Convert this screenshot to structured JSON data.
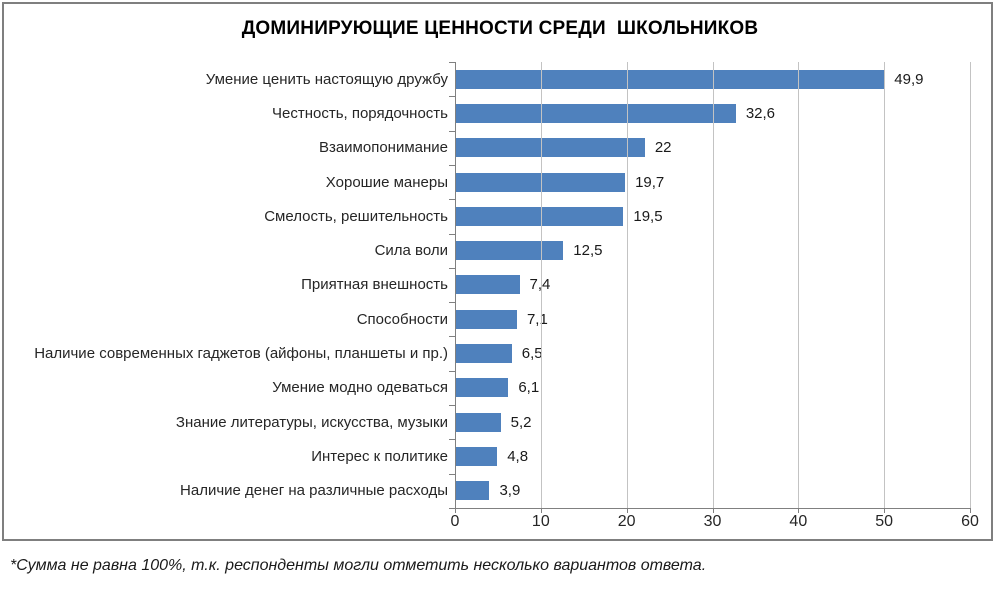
{
  "chart": {
    "title": "ДОМИНИРУЮЩИЕ ЦЕННОСТИ СРЕДИ  ШКОЛЬНИКОВ",
    "footnote": "*Сумма не равна 100%, т.к. респонденты могли отметить несколько вариантов ответа."
  },
  "chart_data": {
    "type": "bar",
    "orientation": "horizontal",
    "title": "ДОМИНИРУЮЩИЕ ЦЕННОСТИ СРЕДИ  ШКОЛЬНИКОВ",
    "categories": [
      "Умение ценить настоящую дружбу",
      "Честность, порядочность",
      "Взаимопонимание",
      "Хорошие манеры",
      "Смелость, решительность",
      "Сила воли",
      "Приятная внешность",
      "Способности",
      "Наличие современных гаджетов (айфоны, планшеты и пр.)",
      "Умение модно одеваться",
      "Знание литературы, искусства, музыки",
      "Интерес к политике",
      "Наличие денег на различные расходы"
    ],
    "values": [
      49.9,
      32.6,
      22,
      19.7,
      19.5,
      12.5,
      7.4,
      7.1,
      6.5,
      6.1,
      5.2,
      4.8,
      3.9
    ],
    "value_labels": [
      "49,9",
      "32,6",
      "22",
      "19,7",
      "19,5",
      "12,5",
      "7,4",
      "7,1",
      "6,5",
      "6,1",
      "5,2",
      "4,8",
      "3,9"
    ],
    "xlim": [
      0,
      60
    ],
    "x_ticks": [
      0,
      10,
      20,
      30,
      40,
      50,
      60
    ],
    "grid": true,
    "legend": "none",
    "bar_color": "#4f81bd",
    "gridline_color": "#c3c3c3",
    "axis_color": "#808080"
  }
}
